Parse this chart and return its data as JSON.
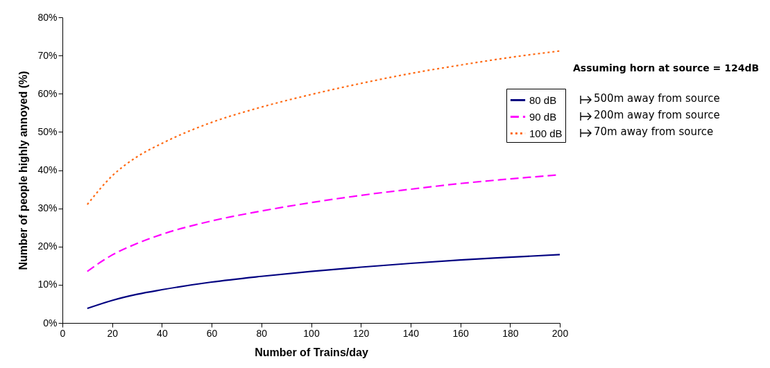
{
  "chart_data": {
    "type": "line",
    "xlabel": "Number of Trains/day",
    "ylabel": "Number of people highly annoyed (%)",
    "x": [
      10,
      20,
      30,
      40,
      60,
      80,
      100,
      120,
      140,
      160,
      180,
      200
    ],
    "series": [
      {
        "name": "80 dB",
        "color": "#000080",
        "line_style": "solid",
        "values": [
          3.8,
          5.9,
          7.5,
          8.7,
          10.7,
          12.2,
          13.5,
          14.6,
          15.6,
          16.5,
          17.2,
          17.9
        ]
      },
      {
        "name": "90 dB",
        "color": "#ff00ff",
        "line_style": "dashed",
        "values": [
          13.5,
          17.8,
          20.8,
          23.2,
          26.7,
          29.3,
          31.5,
          33.4,
          35.0,
          36.5,
          37.7,
          38.8
        ]
      },
      {
        "name": "100 dB",
        "color": "#ff6a13",
        "line_style": "dotted",
        "values": [
          31,
          38.5,
          43.5,
          47,
          52.5,
          56.5,
          59.8,
          62.7,
          65.3,
          67.5,
          69.5,
          71.2
        ]
      }
    ],
    "xlim": [
      0,
      200
    ],
    "xticks": [
      0,
      20,
      40,
      60,
      80,
      100,
      120,
      140,
      160,
      180,
      200
    ],
    "ylim": [
      0,
      80
    ],
    "yticks": [
      {
        "value": 0,
        "label": "0%"
      },
      {
        "value": 10,
        "label": "10%"
      },
      {
        "value": 20,
        "label": "20%"
      },
      {
        "value": 30,
        "label": "30%"
      },
      {
        "value": 40,
        "label": "40%"
      },
      {
        "value": 50,
        "label": "50%"
      },
      {
        "value": 60,
        "label": "60%"
      },
      {
        "value": 70,
        "label": "70%"
      },
      {
        "value": 80,
        "label": "80%"
      }
    ],
    "legend": "right",
    "annotations": [
      "Assuming horn at source = 124dB",
      "500m away from source",
      "200m away from source",
      "70m away from source"
    ]
  }
}
